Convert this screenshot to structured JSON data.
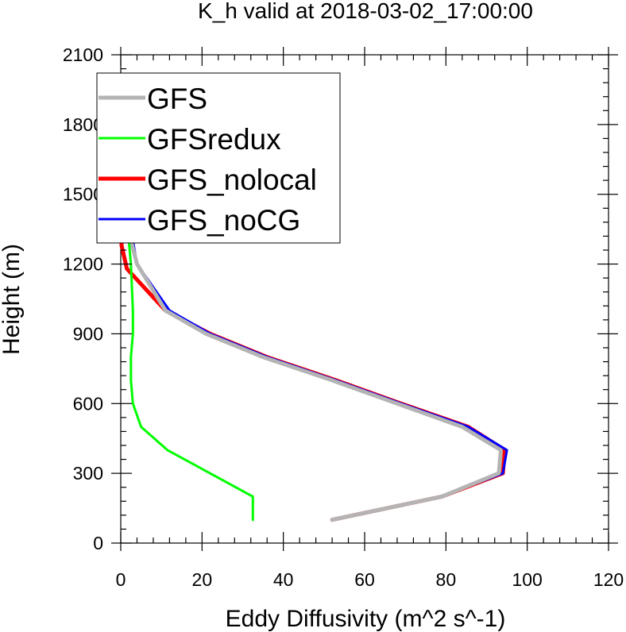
{
  "chart_data": {
    "type": "line",
    "title": "K_h valid at 2018-03-02_17:00:00",
    "xlabel": "Eddy Diffusivity (m^2 s^-1)",
    "ylabel": "Height (m)",
    "xlim": [
      0,
      120
    ],
    "ylim": [
      0,
      2100
    ],
    "x_ticks": [
      0,
      20,
      40,
      60,
      80,
      100,
      120
    ],
    "y_ticks": [
      0,
      300,
      600,
      900,
      1200,
      1500,
      1800,
      2100
    ],
    "x_tick_labels": [
      "0",
      "20",
      "40",
      "60",
      "80",
      "100",
      "120"
    ],
    "y_tick_labels": [
      "0",
      "300",
      "600",
      "900",
      "1200",
      "1500",
      "1800",
      "2100"
    ],
    "grid": false,
    "legend_position": "top-left",
    "series": [
      {
        "name": "GFS",
        "color": "#b4b4b4",
        "points": [
          [
            52,
            100
          ],
          [
            79,
            200
          ],
          [
            93,
            300
          ],
          [
            93.5,
            400
          ],
          [
            84,
            500
          ],
          [
            68,
            600
          ],
          [
            52,
            700
          ],
          [
            35,
            800
          ],
          [
            21,
            900
          ],
          [
            11,
            1000
          ],
          [
            4,
            1200
          ],
          [
            2.5,
            1300
          ],
          [
            2,
            1500
          ],
          [
            1.5,
            1800
          ],
          [
            1,
            2000
          ]
        ]
      },
      {
        "name": "GFSredux",
        "color": "#00ff00",
        "points": [
          [
            32.5,
            100
          ],
          [
            32.5,
            200
          ],
          [
            11.5,
            400
          ],
          [
            5,
            500
          ],
          [
            3,
            600
          ],
          [
            2.5,
            700
          ],
          [
            2.5,
            800
          ],
          [
            3,
            900
          ],
          [
            3,
            1000
          ],
          [
            2.5,
            1200
          ],
          [
            2,
            1300
          ],
          [
            1.5,
            1500
          ],
          [
            1,
            1800
          ],
          [
            0.5,
            2000
          ]
        ]
      },
      {
        "name": "GFS_nolocal",
        "color": "#ff0000",
        "points": [
          [
            52,
            100
          ],
          [
            79,
            200
          ],
          [
            94,
            300
          ],
          [
            94.5,
            400
          ],
          [
            85.5,
            500
          ],
          [
            69,
            600
          ],
          [
            53,
            700
          ],
          [
            36,
            800
          ],
          [
            22,
            900
          ],
          [
            11,
            1000
          ],
          [
            1.5,
            1180
          ],
          [
            0.2,
            1280
          ],
          [
            0,
            1400
          ],
          [
            0,
            1800
          ],
          [
            0,
            2000
          ]
        ]
      },
      {
        "name": "GFS_noCG",
        "color": "#0000ff",
        "points": [
          [
            52,
            100
          ],
          [
            79,
            200
          ],
          [
            94,
            300
          ],
          [
            95,
            400
          ],
          [
            85.5,
            500
          ],
          [
            69,
            600
          ],
          [
            53,
            700
          ],
          [
            36,
            800
          ],
          [
            22,
            900
          ],
          [
            12,
            1000
          ],
          [
            4,
            1200
          ],
          [
            3,
            1300
          ],
          [
            2.5,
            1500
          ],
          [
            2,
            1800
          ],
          [
            1,
            2000
          ]
        ]
      }
    ]
  }
}
